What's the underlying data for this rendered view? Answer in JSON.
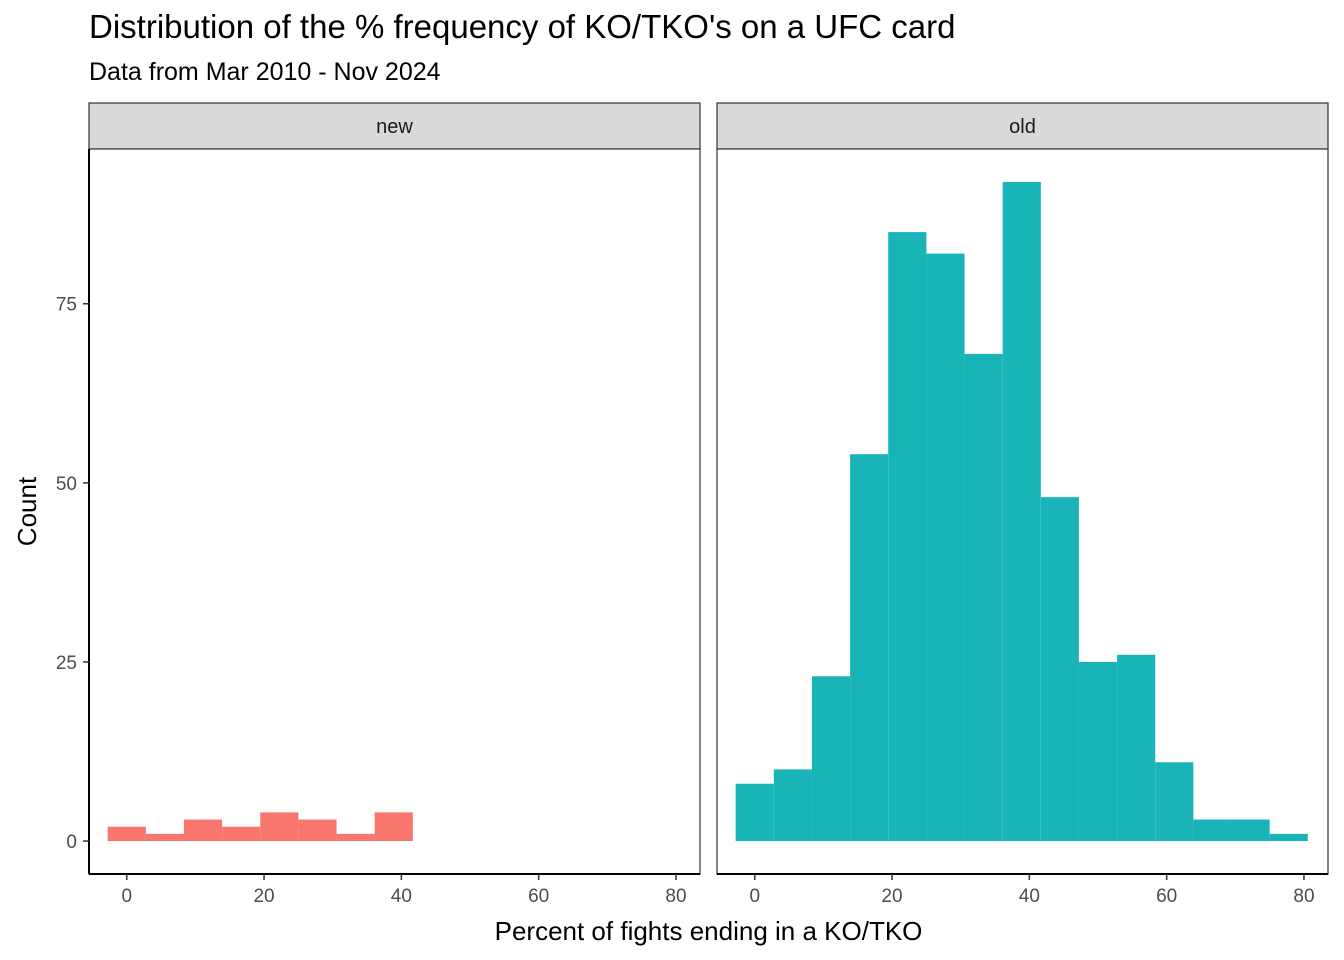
{
  "chart_data": {
    "type": "bar",
    "title": "Distribution of the % frequency of KO/TKO's on a UFC card",
    "subtitle": "Data from Mar 2010 - Nov 2024",
    "xlabel": "Percent of fights ending in a KO/TKO",
    "ylabel": "Count",
    "xlim": [
      -5.5,
      83.5
    ],
    "ylim": [
      -4.6,
      96.6
    ],
    "x_ticks": [
      0,
      20,
      40,
      60,
      80
    ],
    "y_ticks": [
      0,
      25,
      50,
      75
    ],
    "grid": false,
    "bin_width": 5.55,
    "panels": [
      {
        "label": "new",
        "color": "#F8766D",
        "bins": [
          {
            "x0": -2.78,
            "x1": 2.78,
            "count": 2
          },
          {
            "x0": 2.78,
            "x1": 8.33,
            "count": 1
          },
          {
            "x0": 8.33,
            "x1": 13.89,
            "count": 3
          },
          {
            "x0": 13.89,
            "x1": 19.44,
            "count": 2
          },
          {
            "x0": 19.44,
            "x1": 25.0,
            "count": 4
          },
          {
            "x0": 25.0,
            "x1": 30.56,
            "count": 3
          },
          {
            "x0": 30.56,
            "x1": 36.11,
            "count": 1
          },
          {
            "x0": 36.11,
            "x1": 41.67,
            "count": 4
          }
        ]
      },
      {
        "label": "old",
        "color": "#19B4B8",
        "bins": [
          {
            "x0": -2.78,
            "x1": 2.78,
            "count": 8
          },
          {
            "x0": 2.78,
            "x1": 8.33,
            "count": 10
          },
          {
            "x0": 8.33,
            "x1": 13.89,
            "count": 23
          },
          {
            "x0": 13.89,
            "x1": 19.44,
            "count": 54
          },
          {
            "x0": 19.44,
            "x1": 25.0,
            "count": 85
          },
          {
            "x0": 25.0,
            "x1": 30.56,
            "count": 82
          },
          {
            "x0": 30.56,
            "x1": 36.11,
            "count": 68
          },
          {
            "x0": 36.11,
            "x1": 41.67,
            "count": 92
          },
          {
            "x0": 41.67,
            "x1": 47.22,
            "count": 48
          },
          {
            "x0": 47.22,
            "x1": 52.78,
            "count": 25
          },
          {
            "x0": 52.78,
            "x1": 58.33,
            "count": 26
          },
          {
            "x0": 58.33,
            "x1": 63.89,
            "count": 11
          },
          {
            "x0": 63.89,
            "x1": 69.44,
            "count": 3
          },
          {
            "x0": 69.44,
            "x1": 75.0,
            "count": 3
          },
          {
            "x0": 75.0,
            "x1": 80.56,
            "count": 1
          }
        ]
      }
    ]
  }
}
